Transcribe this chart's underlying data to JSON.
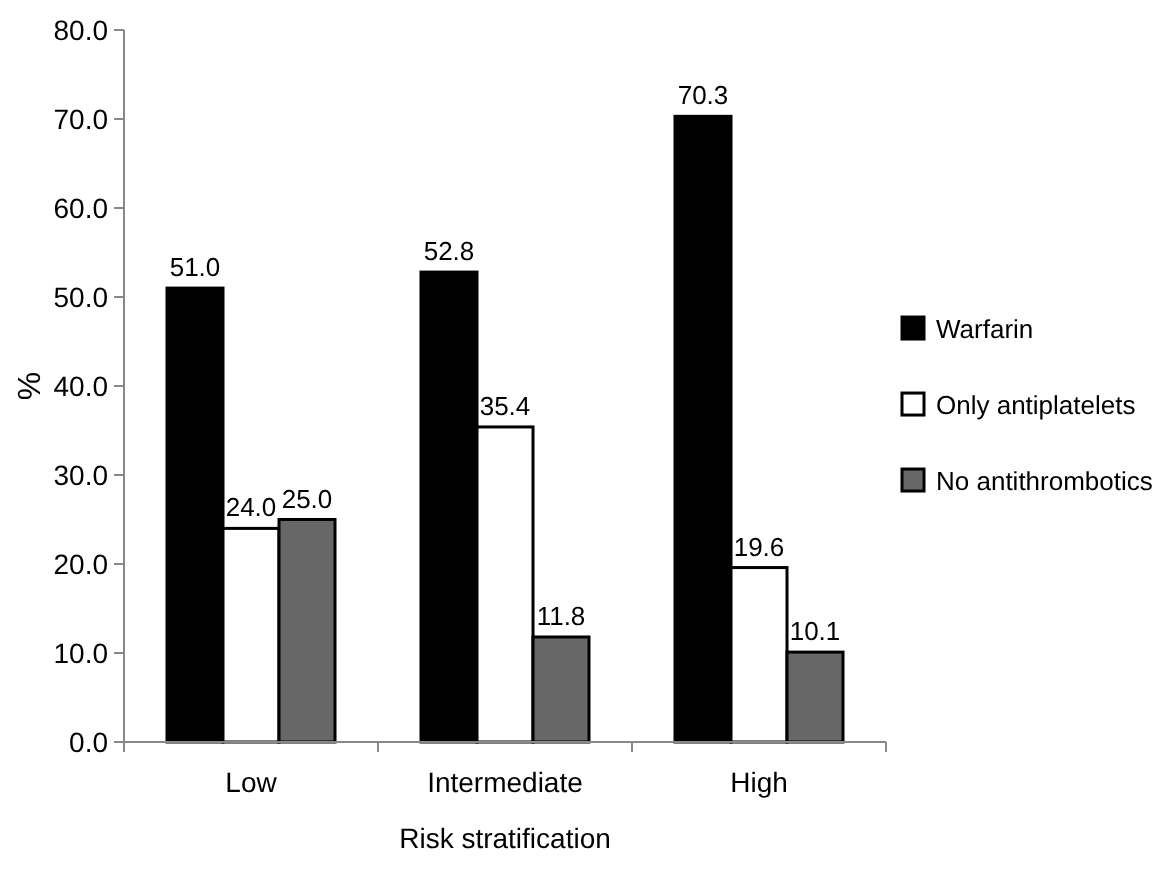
{
  "chart_data": {
    "type": "bar",
    "xlabel": "Risk stratification",
    "ylabel": "%",
    "categories": [
      "Low",
      "Intermediate",
      "High"
    ],
    "series": [
      {
        "name": "Warfarin",
        "color": "#000000",
        "values": [
          51.0,
          52.8,
          70.3
        ],
        "value_labels": [
          "51.0",
          "52.8",
          "70.3"
        ]
      },
      {
        "name": "Only antiplatelets",
        "color": "#ffffff",
        "values": [
          24.0,
          35.4,
          19.6
        ],
        "value_labels": [
          "24.0",
          "35.4",
          "19.6"
        ]
      },
      {
        "name": "No antithrombotics",
        "color": "#676767",
        "values": [
          25.0,
          11.8,
          10.1
        ],
        "value_labels": [
          "25.0",
          "11.8",
          "10.1"
        ]
      }
    ],
    "ylim": [
      0,
      80
    ],
    "yticks": [
      {
        "value": 0,
        "label": "0.0"
      },
      {
        "value": 10,
        "label": "10.0"
      },
      {
        "value": 20,
        "label": "20.0"
      },
      {
        "value": 30,
        "label": "30.0"
      },
      {
        "value": 40,
        "label": "40.0"
      },
      {
        "value": 50,
        "label": "50.0"
      },
      {
        "value": 60,
        "label": "60.0"
      },
      {
        "value": 70,
        "label": "70.0"
      },
      {
        "value": 80,
        "label": "80.0"
      }
    ],
    "legend": "right"
  }
}
